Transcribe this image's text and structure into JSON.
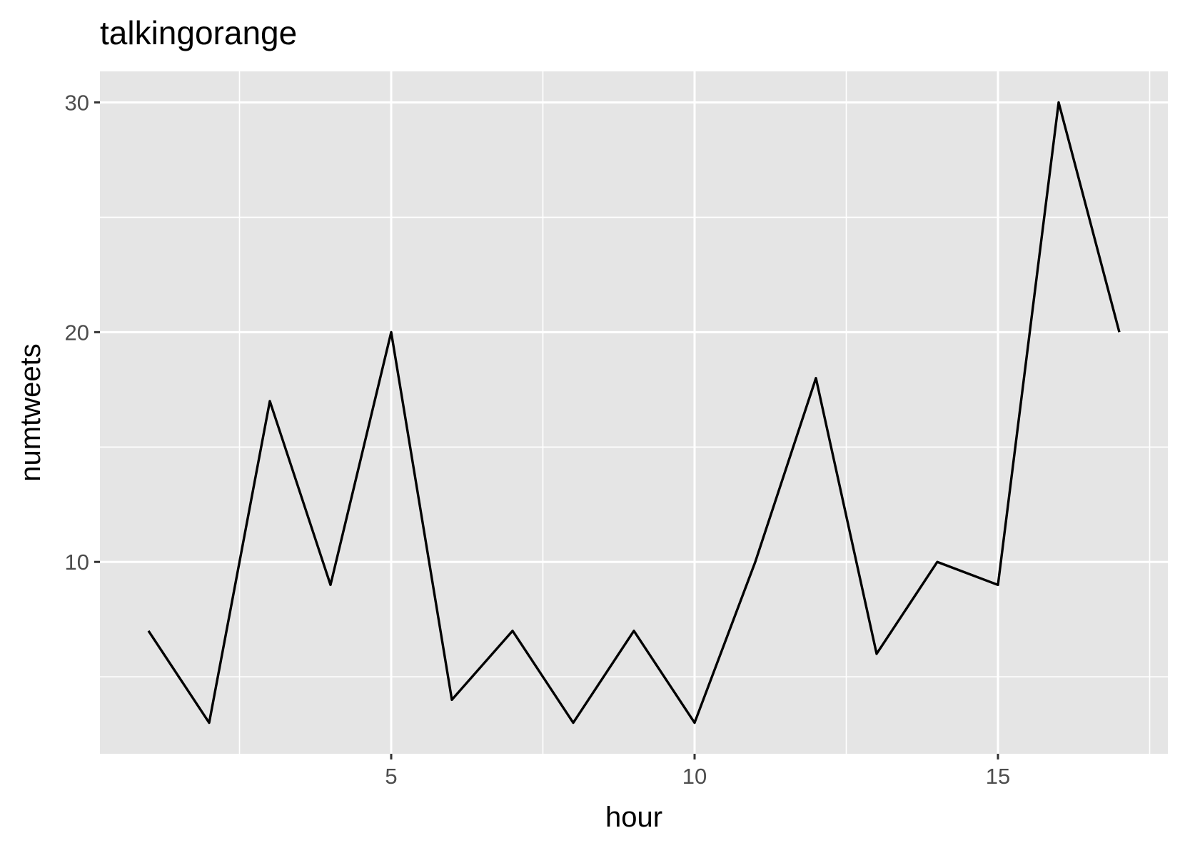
{
  "chart_data": {
    "type": "line",
    "title": "talkingorange",
    "xlabel": "hour",
    "ylabel": "numtweets",
    "x": [
      1,
      2,
      3,
      4,
      5,
      6,
      7,
      8,
      9,
      10,
      11,
      12,
      13,
      14,
      15,
      16,
      17
    ],
    "series": [
      {
        "values": [
          7,
          3,
          17,
          9,
          20,
          4,
          7,
          3,
          7,
          3,
          10,
          18,
          6,
          10,
          9,
          30,
          20
        ]
      }
    ],
    "x_ticks": [
      5,
      10,
      15
    ],
    "x_tick_labels": [
      "5",
      "10",
      "15"
    ],
    "y_ticks": [
      10,
      20,
      30
    ],
    "y_tick_labels": [
      "10",
      "20",
      "30"
    ],
    "xlim": [
      0.2,
      17.8
    ],
    "ylim": [
      1.65,
      31.35
    ],
    "grid": true,
    "line_color": "#000000",
    "panel_background": "#e5e5e5",
    "grid_color": "#ffffff"
  }
}
